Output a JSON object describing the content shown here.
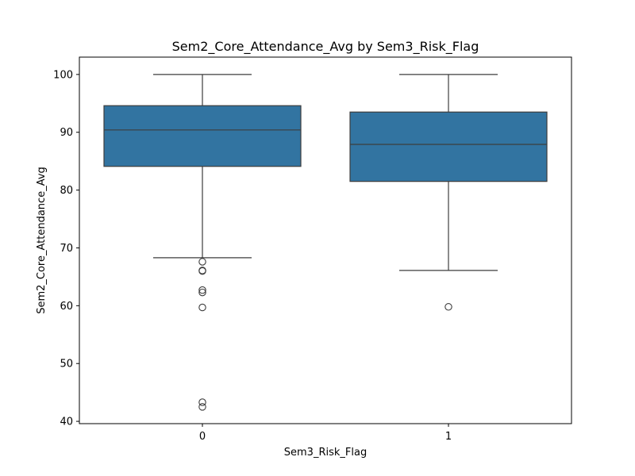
{
  "chart_data": {
    "type": "box",
    "title": "Sem2_Core_Attendance_Avg by Sem3_Risk_Flag",
    "xlabel": "Sem3_Risk_Flag",
    "ylabel": "Sem2_Core_Attendance_Avg",
    "categories": [
      "0",
      "1"
    ],
    "ylim": [
      39.6,
      103.0
    ],
    "yticks": [
      40,
      50,
      60,
      70,
      80,
      90,
      100
    ],
    "grid": false,
    "legend": false,
    "colors": {
      "box_fill": "#3274a1",
      "line": "#3d3d3d"
    },
    "boxes": [
      {
        "category": "0",
        "whisker_low": 68.3,
        "q1": 84.1,
        "median": 90.4,
        "q3": 94.6,
        "whisker_high": 100.0,
        "outliers": [
          67.6,
          66.1,
          66.0,
          62.7,
          62.3,
          59.7,
          43.3,
          42.5
        ]
      },
      {
        "category": "1",
        "whisker_low": 66.1,
        "q1": 81.5,
        "median": 87.9,
        "q3": 93.5,
        "whisker_high": 100.0,
        "outliers": [
          59.8
        ]
      }
    ]
  }
}
